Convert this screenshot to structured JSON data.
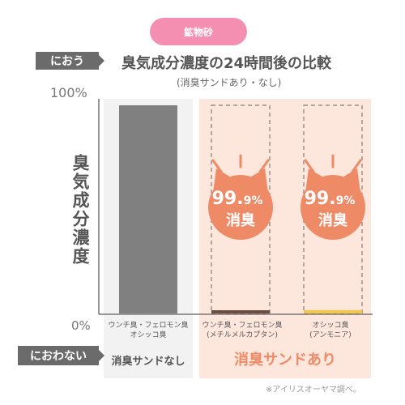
{
  "header": {
    "pill": "鉱物砂",
    "title": "臭気成分濃度の24時間後の比較",
    "subtitle": "(消臭サンドあり・なし)"
  },
  "tags": {
    "top": "におう",
    "bottom": "におわない"
  },
  "notes": {
    "source": "※アイリスオーヤマ調べ。"
  },
  "badges": [
    {
      "main": "99.",
      "small": "9%",
      "label": "消臭"
    },
    {
      "main": "99.",
      "small": "9%",
      "label": "消臭"
    }
  ],
  "colors": {
    "bar_without": "#808080",
    "bar_methyl": "#6d4c41",
    "bar_ammonia": "#f6c743",
    "accent": "#ef8a67",
    "panel_pink": "#fde7dd",
    "panel_gray": "#f2f2f2"
  },
  "chart_data": {
    "type": "bar",
    "title": "臭気成分濃度の24時間後の比較",
    "subtitle": "(消臭サンドあり・なし)",
    "ylabel": "臭気成分濃度",
    "ylim": [
      0,
      100
    ],
    "ytick_labels": [
      "0%",
      "100%"
    ],
    "categories": [
      "ウンチ臭・フェロモン臭\nオシッコ臭",
      "ウンチ臭・フェロモン臭\n(メチルメルカプタン)",
      "オシッコ臭\n(アンモニア)"
    ],
    "groups": [
      "消臭サンドなし",
      "消臭サンドあり",
      "消臭サンドあり"
    ],
    "values": [
      100,
      0.1,
      0.1
    ],
    "reference_outline": [
      false,
      true,
      true
    ],
    "reduction_labels": [
      null,
      "99.9%消臭",
      "99.9%消臭"
    ],
    "grid": false
  }
}
